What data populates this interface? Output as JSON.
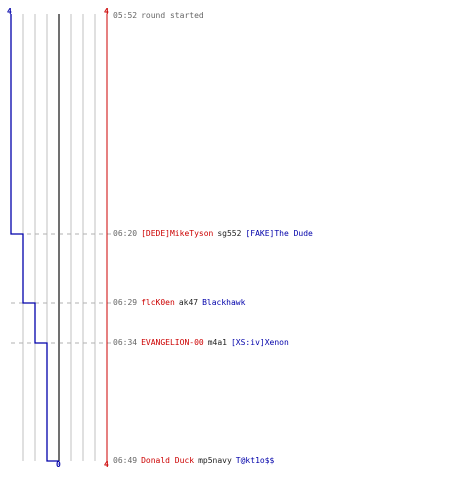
{
  "scores": {
    "blue_top": "4",
    "red_top": "4",
    "blue_bottom": "0",
    "red_bottom": "4"
  },
  "colors": {
    "team_red": "#cc0000",
    "team_blue": "#0000aa",
    "time": "#666666",
    "grid": "#c0c0c0",
    "center": "#707070"
  },
  "events": [
    {
      "time": "05:52",
      "note": "round started",
      "killer": "",
      "killer_team": "",
      "weapon": "",
      "victim": "",
      "victim_team": "",
      "blue_alive": 4
    },
    {
      "time": "06:20",
      "note": "",
      "killer": "[DEDE]MikeTyson",
      "killer_team": "red",
      "weapon": "sg552",
      "victim": "[FAKE]The Dude",
      "victim_team": "blue",
      "blue_alive": 3
    },
    {
      "time": "06:29",
      "note": "",
      "killer": "flcK0en",
      "killer_team": "red",
      "weapon": "ak47",
      "victim": "Blackhawk",
      "victim_team": "blue",
      "blue_alive": 2
    },
    {
      "time": "06:34",
      "note": "",
      "killer": "EVANGELION-00",
      "killer_team": "red",
      "weapon": "m4a1",
      "victim": "[XS:iv]Xenon",
      "victim_team": "blue",
      "blue_alive": 1
    },
    {
      "time": "06:49",
      "note": "",
      "killer": "Donald Duck",
      "killer_team": "red",
      "weapon": "mp5navy",
      "victim": "T@kt1o$$",
      "victim_team": "blue",
      "blue_alive": 0
    }
  ]
}
